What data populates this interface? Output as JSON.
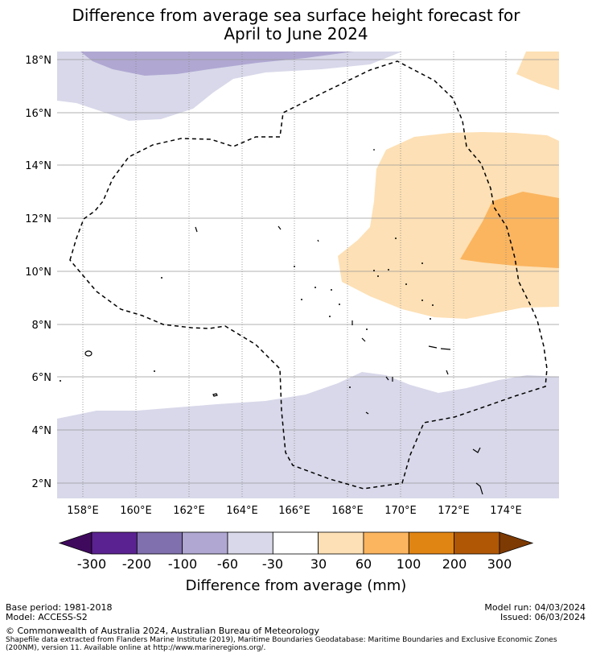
{
  "title": {
    "line1": "Difference from average sea surface height forecast for",
    "line2": "April to June 2024"
  },
  "map": {
    "lat_ticks": [
      "18°N",
      "16°N",
      "14°N",
      "12°N",
      "10°N",
      "8°N",
      "6°N",
      "4°N",
      "2°N"
    ],
    "lon_ticks": [
      "158°E",
      "160°E",
      "162°E",
      "164°E",
      "166°E",
      "168°E",
      "170°E",
      "172°E",
      "174°E"
    ],
    "boundary_label": "Maritime boundary (EEZ)"
  },
  "colorbar": {
    "labels": [
      "-300",
      "-200",
      "-100",
      "-60",
      "-30",
      "30",
      "60",
      "100",
      "200",
      "300"
    ],
    "colors": [
      "#3f0a5e",
      "#5a2290",
      "#8070ad",
      "#b0a8d2",
      "#d8d8ea",
      "#ffffff",
      "#fde0b5",
      "#fbb55f",
      "#e08414",
      "#b05706",
      "#7d3a03"
    ],
    "title": "Difference from average (mm)"
  },
  "footer": {
    "base_period": "Base period: 1981-2018",
    "model": "Model: ACCESS-S2",
    "model_run": "Model run: 04/03/2024",
    "issued": "Issued: 06/03/2024",
    "copyright": "© Commonwealth of Australia 2024, Australian Bureau of Meteorology",
    "shapefile_line1": "Shapefile data extracted from Flanders Marine Institute (2019), Maritime Boundaries Geodatabase: Maritime Boundaries and Exclusive Economic Zones",
    "shapefile_line2": "(200NM), version 11. Available online at http://www.marineregions.org/."
  }
}
